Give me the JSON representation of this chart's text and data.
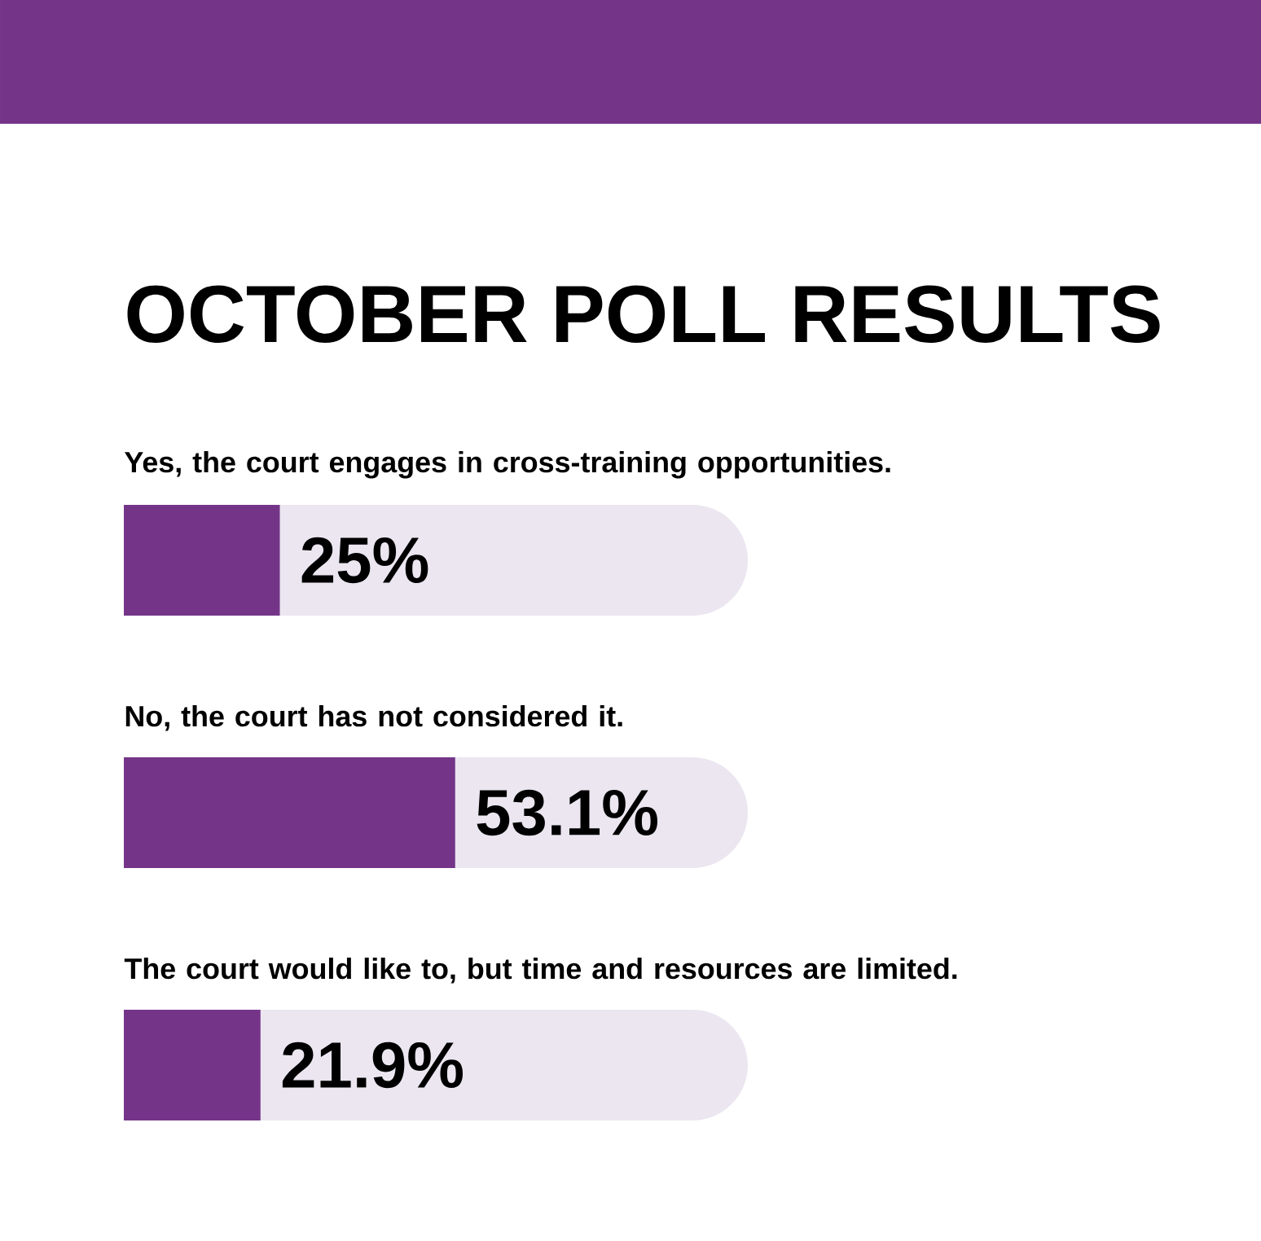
{
  "chart_data": {
    "type": "bar",
    "orientation": "horizontal",
    "title": "OCTOBER POLL RESULTS",
    "categories": [
      "Yes, the court engages in cross-training opportunities.",
      "No, the court has not considered it.",
      "The court would like to, but time and resources are limited."
    ],
    "values": [
      25,
      53.1,
      21.9
    ],
    "value_labels": [
      "25%",
      "53.1%",
      "21.9%"
    ],
    "color": "#743589",
    "xlim": [
      0,
      100
    ],
    "tick_labels": false
  }
}
